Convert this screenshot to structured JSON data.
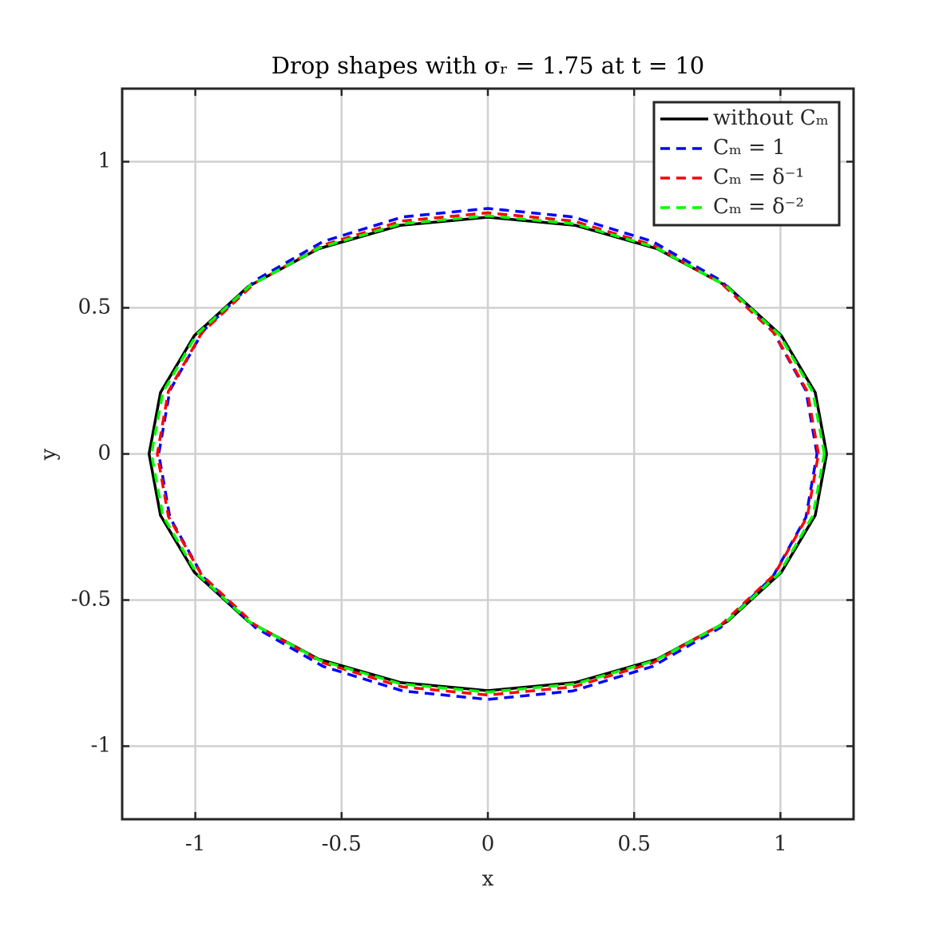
{
  "chart_data": {
    "type": "line",
    "title": "Drop shapes with σᵣ = 1.75 at t = 10",
    "xlabel": "x",
    "ylabel": "y",
    "xlim": [
      -1.25,
      1.25
    ],
    "ylim": [
      -1.25,
      1.25
    ],
    "xticks": [
      -1,
      -0.5,
      0,
      0.5,
      1
    ],
    "yticks": [
      -1,
      -0.5,
      0,
      0.5,
      1
    ],
    "grid": true,
    "legend": "upper-right",
    "series": [
      {
        "name": "without Cₘ",
        "color": "#000000",
        "dash": "solid",
        "x": [
          1.158,
          1.119,
          1.003,
          0.819,
          0.579,
          0.3,
          0,
          -0.3,
          -0.579,
          -0.819,
          -1.003,
          -1.119,
          -1.158,
          -1.119,
          -1.003,
          -0.819,
          -0.579,
          -0.3,
          0,
          0.3,
          0.579,
          0.819,
          1.003,
          1.119,
          1.158
        ],
        "y": [
          0,
          0.21,
          0.405,
          0.573,
          0.702,
          0.782,
          0.81,
          0.782,
          0.702,
          0.573,
          0.405,
          0.21,
          0,
          -0.21,
          -0.405,
          -0.573,
          -0.702,
          -0.782,
          -0.81,
          -0.782,
          -0.702,
          -0.573,
          -0.405,
          -0.21,
          0
        ]
      },
      {
        "name": "Cₘ = 1",
        "color": "#0000ff",
        "dash": "dashed",
        "x": [
          1.125,
          1.087,
          0.974,
          0.795,
          0.563,
          0.291,
          0,
          -0.291,
          -0.563,
          -0.795,
          -0.974,
          -1.087,
          -1.125,
          -1.087,
          -0.974,
          -0.795,
          -0.563,
          -0.291,
          0,
          0.291,
          0.563,
          0.795,
          0.974,
          1.087,
          1.125
        ],
        "y": [
          0,
          0.217,
          0.42,
          0.594,
          0.727,
          0.811,
          0.84,
          0.811,
          0.727,
          0.594,
          0.42,
          0.217,
          0,
          -0.217,
          -0.42,
          -0.594,
          -0.727,
          -0.811,
          -0.84,
          -0.811,
          -0.727,
          -0.594,
          -0.42,
          -0.217,
          0
        ]
      },
      {
        "name": "Cₘ = δ⁻¹",
        "color": "#ff0000",
        "dash": "dashed",
        "x": [
          1.13,
          1.092,
          0.979,
          0.799,
          0.565,
          0.293,
          0,
          -0.293,
          -0.565,
          -0.799,
          -0.979,
          -1.092,
          -1.13,
          -1.092,
          -0.979,
          -0.799,
          -0.565,
          -0.293,
          0,
          0.293,
          0.565,
          0.799,
          0.979,
          1.092,
          1.13
        ],
        "y": [
          0,
          0.214,
          0.413,
          0.583,
          0.714,
          0.797,
          0.825,
          0.797,
          0.714,
          0.583,
          0.413,
          0.214,
          0,
          -0.214,
          -0.413,
          -0.583,
          -0.714,
          -0.797,
          -0.825,
          -0.797,
          -0.714,
          -0.583,
          -0.413,
          -0.214,
          0
        ]
      },
      {
        "name": "Cₘ = δ⁻²",
        "color": "#00ff00",
        "dash": "dashed",
        "x": [
          1.15,
          1.111,
          0.996,
          0.813,
          0.575,
          0.298,
          0,
          -0.298,
          -0.575,
          -0.813,
          -0.996,
          -1.111,
          -1.15,
          -1.111,
          -0.996,
          -0.813,
          -0.575,
          -0.298,
          0,
          0.298,
          0.575,
          0.813,
          0.996,
          1.111,
          1.15
        ],
        "y": [
          0,
          0.211,
          0.408,
          0.576,
          0.706,
          0.787,
          0.815,
          0.787,
          0.706,
          0.576,
          0.408,
          0.211,
          0,
          -0.211,
          -0.408,
          -0.576,
          -0.706,
          -0.787,
          -0.815,
          -0.787,
          -0.706,
          -0.576,
          -0.408,
          -0.211,
          0
        ]
      }
    ]
  }
}
